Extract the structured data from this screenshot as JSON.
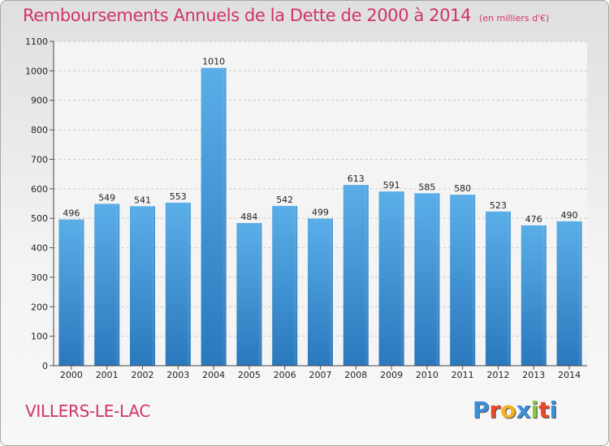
{
  "header": {
    "title": "Remboursements Annuels de la Dette de 2000 à 2014",
    "unit": "(en milliers d'€)"
  },
  "footer": {
    "place": "VILLERS-LE-LAC",
    "logo": [
      "P",
      "r",
      "o",
      "x",
      "i",
      "t",
      "i"
    ]
  },
  "colors": {
    "title": "#d0336b",
    "bar_top": "#5aaee8",
    "bar_bottom": "#2a78bd",
    "logo": [
      "#3a8fd8",
      "#e8492d",
      "#f3b120",
      "#3a8fd8",
      "#8cc63f",
      "#e8492d",
      "#3a8fd8"
    ]
  },
  "chart_data": {
    "type": "bar",
    "title": "Remboursements Annuels de la Dette de 2000 à 2014",
    "xlabel": "",
    "ylabel": "",
    "categories": [
      "2000",
      "2001",
      "2002",
      "2003",
      "2004",
      "2005",
      "2006",
      "2007",
      "2008",
      "2009",
      "2010",
      "2011",
      "2012",
      "2013",
      "2014"
    ],
    "values": [
      496,
      549,
      541,
      553,
      1010,
      484,
      542,
      499,
      613,
      591,
      585,
      580,
      523,
      476,
      490
    ],
    "ylim": [
      0,
      1100
    ],
    "yticks": [
      0,
      100,
      200,
      300,
      400,
      500,
      600,
      700,
      800,
      900,
      1000,
      1100
    ],
    "grid": true
  }
}
